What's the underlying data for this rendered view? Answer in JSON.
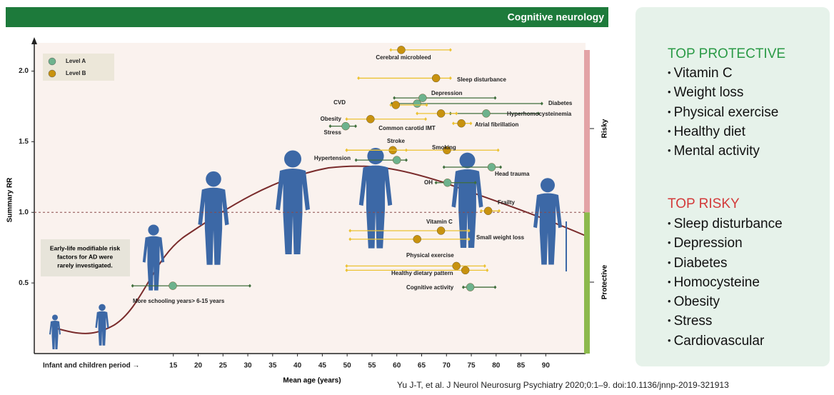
{
  "banner": {
    "title": "Cognitive neurology"
  },
  "chart_data": {
    "type": "scatter",
    "x_label": "Mean age (years)",
    "y_label": "Summary RR",
    "x_prefix_label": "Infant and children period →",
    "xlim": [
      -13,
      98
    ],
    "xticks": [
      15,
      20,
      25,
      30,
      35,
      40,
      45,
      50,
      55,
      60,
      65,
      70,
      75,
      80,
      85,
      90
    ],
    "ylim": [
      0,
      2.2
    ],
    "yticks": [
      0.5,
      {
        "value": 1,
        "label": "1.0"
      },
      1.5,
      {
        "value": 2,
        "label": "2.0"
      }
    ],
    "reference_line": 1,
    "zones": [
      {
        "name": "Risky",
        "color": "#e3a3a6"
      },
      {
        "name": "Protective",
        "color": "#8cb94c"
      }
    ],
    "annotation": [
      "Early-life modifiable risk",
      "factors for AD were",
      "rarely investigated."
    ],
    "legend": "upper left",
    "series": [
      {
        "name": "Level A",
        "color": "#6db28d",
        "bar_color": "#3f6e3c",
        "names": [
          "Depression",
          "Diabetes",
          "Hyperhomocysteinemia",
          "Stress",
          "Hypertension",
          "Head trauma",
          "OH",
          "Cognitive activity",
          "More schooling years> 6-15 years"
        ],
        "x": [
          65.2,
          64.1,
          78.0,
          49.7,
          60.0,
          79.1,
          70.2,
          74.8,
          14.9
        ],
        "y": [
          1.81,
          1.77,
          1.7,
          1.61,
          1.37,
          1.32,
          1.21,
          0.47,
          0.48
        ],
        "xmin": [
          59.5,
          59.0,
          70.8,
          46.6,
          51.8,
          69.5,
          67.9,
          73.4,
          6.8
        ],
        "xmax": [
          79.8,
          89.2,
          88.5,
          51.7,
          61.9,
          80.9,
          75.8,
          79.8,
          30.4
        ]
      },
      {
        "name": "Level B",
        "color": "#c8920f",
        "bar_color": "#ecc232",
        "names": [
          "Cerebral microbleed",
          "Sleep disturbance",
          "CVD",
          "Obesity",
          "Common carotid IMT",
          "Atrial fibrillation",
          "Stroke",
          "Smoking",
          "Frailty",
          "Vitamin C",
          "Small weight loss",
          "Physical exercise",
          "Healthy dietary pattern"
        ],
        "x": [
          60.9,
          67.9,
          59.8,
          54.7,
          68.9,
          73.0,
          59.2,
          70.1,
          78.4,
          68.9,
          64.1,
          72.0,
          73.8
        ],
        "y": [
          2.15,
          1.95,
          1.76,
          1.66,
          1.7,
          1.63,
          1.44,
          1.44,
          1.01,
          0.87,
          0.81,
          0.62,
          0.59
        ],
        "xmin": [
          58.8,
          52.3,
          58.8,
          49.9,
          64.1,
          71.4,
          49.9,
          49.9,
          77.0,
          50.6,
          50.6,
          49.9,
          49.9
        ],
        "xmax": [
          70.8,
          70.8,
          66.0,
          65.8,
          72.0,
          74.9,
          61.9,
          80.4,
          80.6,
          74.5,
          74.5,
          77.7,
          78.2
        ]
      }
    ]
  },
  "side_panel": {
    "protective": {
      "title": "TOP PROTECTIVE",
      "items": [
        "Vitamin C",
        "Weight loss",
        "Physical exercise",
        "Healthy diet",
        "Mental activity"
      ]
    },
    "risky": {
      "title": "TOP RISKY",
      "items": [
        "Sleep disturbance",
        "Depression",
        "Diabetes",
        "Homocysteine",
        "Obesity",
        "Stress",
        "Cardiovascular"
      ]
    }
  },
  "citation": "Yu J-T, et al. J Neurol Neurosurg Psychiatry 2020;0:1–9. doi:10.1136/jnnp-2019-321913"
}
